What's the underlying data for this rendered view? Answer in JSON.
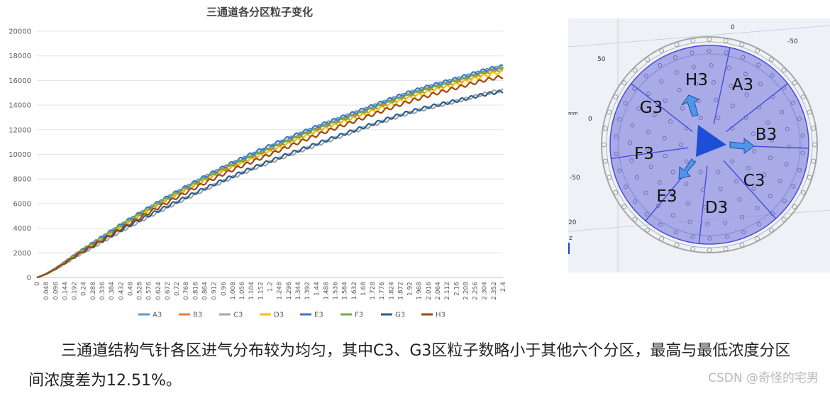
{
  "chart_data": {
    "type": "line",
    "title": "三通道各分区粒子变化",
    "xlabel": "",
    "ylabel": "",
    "xlim": [
      0,
      2.4
    ],
    "ylim": [
      0,
      20000
    ],
    "y_ticks": [
      "0",
      "2000",
      "4000",
      "6000",
      "8000",
      "10000",
      "12000",
      "14000",
      "16000",
      "18000",
      "20000"
    ],
    "x_ticks": [
      "0",
      "0.048",
      "0.096",
      "0.144",
      "0.192",
      "0.24",
      "0.288",
      "0.336",
      "0.384",
      "0.432",
      "0.48",
      "0.528",
      "0.576",
      "0.624",
      "0.672",
      "0.72",
      "0.768",
      "0.816",
      "0.864",
      "0.912",
      "0.96",
      "1.008",
      "1.056",
      "1.104",
      "1.152",
      "1.2",
      "1.248",
      "1.296",
      "1.344",
      "1.392",
      "1.44",
      "1.488",
      "1.536",
      "1.584",
      "1.632",
      "1.68",
      "1.728",
      "1.776",
      "1.824",
      "1.872",
      "1.92",
      "1.968",
      "2.016",
      "2.064",
      "2.112",
      "2.16",
      "2.208",
      "2.256",
      "2.304",
      "2.352",
      "2.4"
    ],
    "grid": true,
    "legend_position": "bottom",
    "series": [
      {
        "name": "A3",
        "color": "#5b9bd5",
        "x": [
          0,
          0.24,
          0.48,
          0.72,
          0.96,
          1.2,
          1.44,
          1.68,
          1.92,
          2.16,
          2.4
        ],
        "values": [
          0,
          2300,
          4700,
          6900,
          8900,
          10600,
          12200,
          13600,
          15000,
          16100,
          17100
        ]
      },
      {
        "name": "B3",
        "color": "#ed7d31",
        "x": [
          0,
          0.24,
          0.48,
          0.72,
          0.96,
          1.2,
          1.44,
          1.68,
          1.92,
          2.16,
          2.4
        ],
        "values": [
          0,
          2250,
          4600,
          6750,
          8700,
          10350,
          11950,
          13350,
          14750,
          15850,
          16900
        ]
      },
      {
        "name": "C3",
        "color": "#a5a5a5",
        "x": [
          0,
          0.24,
          0.48,
          0.72,
          0.96,
          1.2,
          1.44,
          1.68,
          1.92,
          2.16,
          2.4
        ],
        "values": [
          0,
          2050,
          4150,
          6050,
          7800,
          9350,
          10750,
          12100,
          13350,
          14300,
          15200
        ]
      },
      {
        "name": "D3",
        "color": "#ffc000",
        "x": [
          0,
          0.24,
          0.48,
          0.72,
          0.96,
          1.2,
          1.44,
          1.68,
          1.92,
          2.16,
          2.4
        ],
        "values": [
          0,
          2200,
          4550,
          6700,
          8600,
          10200,
          11800,
          13200,
          14600,
          15700,
          16700
        ]
      },
      {
        "name": "E3",
        "color": "#4472c4",
        "x": [
          0,
          0.24,
          0.48,
          0.72,
          0.96,
          1.2,
          1.44,
          1.68,
          1.92,
          2.16,
          2.4
        ],
        "values": [
          0,
          2300,
          4750,
          6950,
          8950,
          10700,
          12250,
          13650,
          15050,
          16150,
          17150
        ]
      },
      {
        "name": "F3",
        "color": "#70ad47",
        "x": [
          0,
          0.24,
          0.48,
          0.72,
          0.96,
          1.2,
          1.44,
          1.68,
          1.92,
          2.16,
          2.4
        ],
        "values": [
          0,
          2250,
          4650,
          6850,
          8800,
          10450,
          12050,
          13450,
          14850,
          15950,
          17000
        ]
      },
      {
        "name": "G3",
        "color": "#255e91",
        "x": [
          0,
          0.24,
          0.48,
          0.72,
          0.96,
          1.2,
          1.44,
          1.68,
          1.92,
          2.16,
          2.4
        ],
        "values": [
          0,
          2100,
          4250,
          6150,
          7900,
          9450,
          10850,
          12200,
          13450,
          14350,
          15100
        ]
      },
      {
        "name": "H3",
        "color": "#9e480e",
        "x": [
          0,
          0.24,
          0.48,
          0.72,
          0.96,
          1.2,
          1.44,
          1.68,
          1.92,
          2.16,
          2.4
        ],
        "values": [
          0,
          2150,
          4400,
          6500,
          8400,
          10000,
          11550,
          12950,
          14300,
          15400,
          16300
        ]
      }
    ]
  },
  "diagram": {
    "axis_labels": {
      "top_0": "0",
      "top_neg50": "-50",
      "left_50": "50",
      "left_0": "0",
      "left_neg50": "-50",
      "left_mm": "mm",
      "left_20": "20",
      "z_axis": "z"
    },
    "zones": [
      "A3",
      "B3",
      "C3",
      "D3",
      "E3",
      "F3",
      "G3",
      "H3"
    ],
    "colors": {
      "disk": "#8f8fe0",
      "line": "#4a4adb",
      "triangle": "#1c4fd6",
      "arrow": "#4e96e8"
    }
  },
  "caption": "三通道结构气针各区进气分布较为均匀，其中C3、G3区粒子数略小于其他六个分区，最高与最低浓度分区间浓度差为12.51%。",
  "watermark": "CSDN @奇怪的宅男"
}
